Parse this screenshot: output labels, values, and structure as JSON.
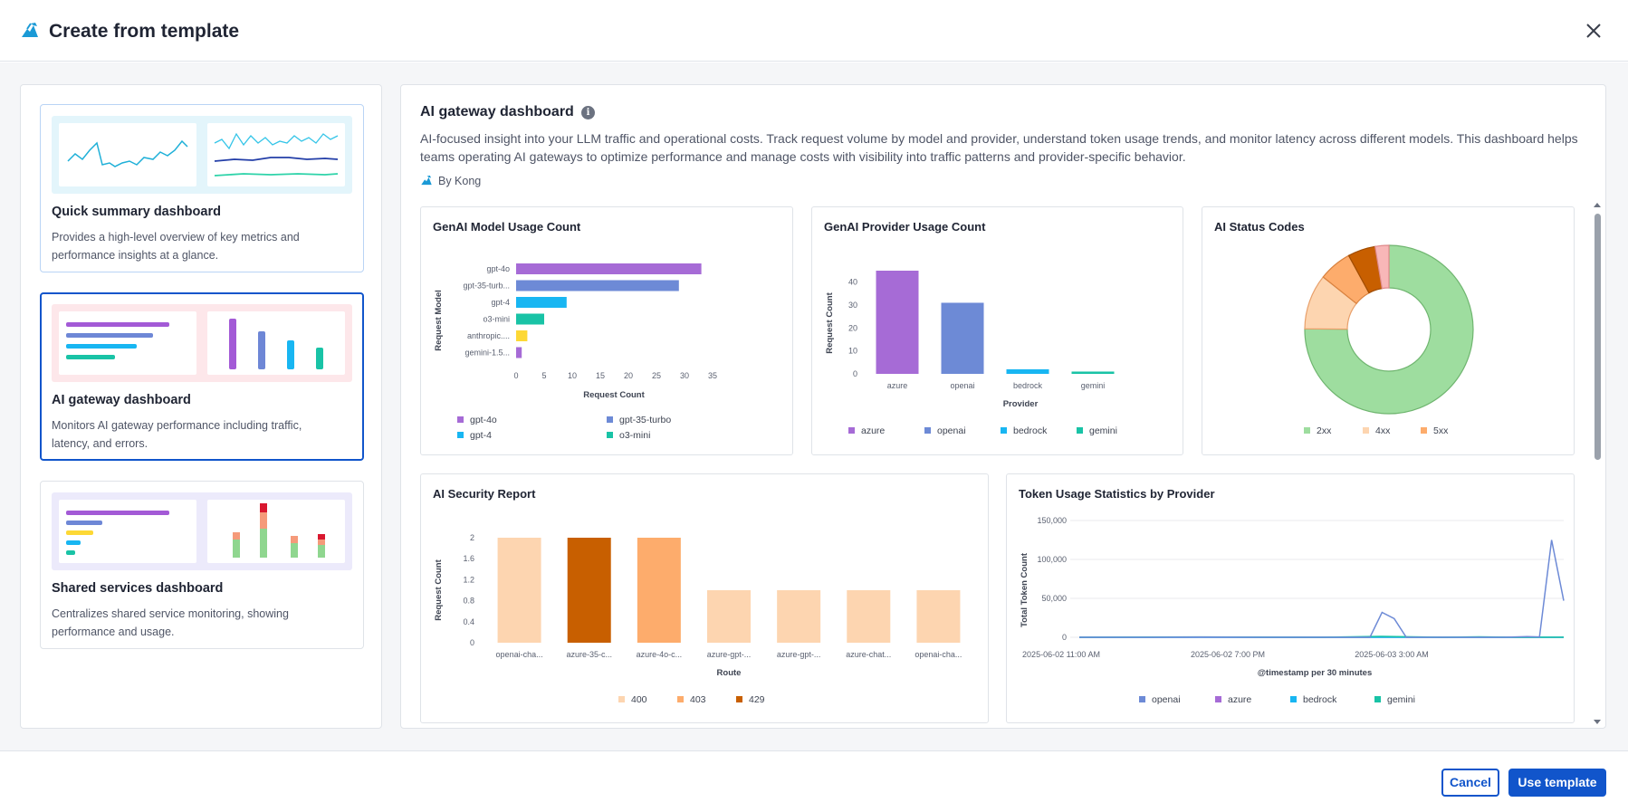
{
  "dialog": {
    "title": "Create from template",
    "close_icon": "close-icon",
    "brand_icon": "kong-logo-icon"
  },
  "colors": {
    "primary": "#1155cb",
    "purple": "#a66bd6",
    "indigo": "#6d8ad6",
    "cyan": "#18b6f2",
    "teal": "#19c3a6",
    "yellow": "#fdd835",
    "green_light": "#9edd9f",
    "peach": "#fdd5b0",
    "orange": "#fdac6c",
    "brown": "#c85f00",
    "pink": "#f8b7b8"
  },
  "templates": [
    {
      "name": "Quick summary dashboard",
      "desc": "Provides a high-level overview of key metrics and performance insights at a glance.",
      "selected": false
    },
    {
      "name": "AI gateway dashboard",
      "desc": "Monitors AI gateway performance including traffic, latency, and errors.",
      "selected": true
    },
    {
      "name": "Shared services dashboard",
      "desc": "Centralizes shared service monitoring, showing performance and usage.",
      "selected": false
    }
  ],
  "detail": {
    "title": "AI gateway dashboard",
    "info_icon": "i",
    "description": "AI-focused insight into your LLM traffic and operational costs. Track request volume by model and provider, understand token usage trends, and monitor latency across different models. This dashboard helps teams operating AI gateways to optimize performance and manage costs with visibility into traffic patterns and provider-specific behavior.",
    "by": "By Kong"
  },
  "chart_data": [
    {
      "id": "model_usage",
      "type": "bar",
      "orientation": "horizontal",
      "title": "GenAI Model Usage Count",
      "xlabel": "Request Count",
      "ylabel": "Request Model",
      "categories": [
        "gpt-4o",
        "gpt-35-turb...",
        "gpt-4",
        "o3-mini",
        "anthropic....",
        "gemini-1.5..."
      ],
      "values": [
        33,
        29,
        9,
        5,
        2,
        1
      ],
      "colors": [
        "#a66bd6",
        "#6d8ad6",
        "#18b6f2",
        "#19c3a6",
        "#fdd835",
        "#a66bd6"
      ],
      "xticks": [
        "0",
        "5",
        "10",
        "15",
        "20",
        "25",
        "30",
        "35"
      ],
      "xlim": [
        0,
        35
      ],
      "legend": [
        {
          "label": "gpt-4o",
          "color": "#a66bd6"
        },
        {
          "label": "gpt-35-turbo",
          "color": "#6d8ad6"
        },
        {
          "label": "gpt-4",
          "color": "#18b6f2"
        },
        {
          "label": "o3-mini",
          "color": "#19c3a6"
        }
      ]
    },
    {
      "id": "provider_usage",
      "type": "bar",
      "title": "GenAI Provider Usage Count",
      "xlabel": "Provider",
      "ylabel": "Request Count",
      "categories": [
        "azure",
        "openai",
        "bedrock",
        "gemini"
      ],
      "values": [
        45,
        31,
        2,
        1
      ],
      "colors": [
        "#a66bd6",
        "#6d8ad6",
        "#18b6f2",
        "#19c3a6"
      ],
      "yticks": [
        "0",
        "10",
        "20",
        "30",
        "40"
      ],
      "ylim": [
        0,
        45
      ],
      "legend": [
        {
          "label": "azure",
          "color": "#a66bd6"
        },
        {
          "label": "openai",
          "color": "#6d8ad6"
        },
        {
          "label": "bedrock",
          "color": "#18b6f2"
        },
        {
          "label": "gemini",
          "color": "#19c3a6"
        }
      ]
    },
    {
      "id": "status_codes",
      "type": "pie",
      "title": "AI Status Codes",
      "donut": true,
      "slices": [
        {
          "label": "2xx",
          "value": 71,
          "color": "#9edd9f",
          "stroke": "#6fb56f"
        },
        {
          "label": "4xx",
          "value": 10,
          "color": "#fdd5b0",
          "stroke": "#e8a06b"
        },
        {
          "label": "4xx",
          "value": 6,
          "color": "#fdac6c",
          "stroke": "#d9823f"
        },
        {
          "label": "4xx",
          "value": 5,
          "color": "#c85f00",
          "stroke": "#a04c00"
        },
        {
          "label": "5xx",
          "value": 2.5,
          "color": "#f8b7b8",
          "stroke": "#e08a8c"
        }
      ],
      "legend": [
        {
          "label": "2xx",
          "color": "#9edd9f"
        },
        {
          "label": "4xx",
          "color": "#fdd5b0"
        },
        {
          "label": "5xx",
          "color": "#fdac6c"
        }
      ]
    },
    {
      "id": "security_report",
      "type": "bar",
      "title": "AI Security Report",
      "xlabel": "Route",
      "ylabel": "Request Count",
      "categories": [
        "openai-cha...",
        "azure-35-c...",
        "azure-4o-c...",
        "azure-gpt-...",
        "azure-gpt-...",
        "azure-chat...",
        "openai-cha..."
      ],
      "values": [
        2,
        2,
        2,
        1,
        1,
        1,
        1
      ],
      "colors": [
        "#fdd5b0",
        "#c85f00",
        "#fdac6c",
        "#fdd5b0",
        "#fdd5b0",
        "#fdd5b0",
        "#fdd5b0"
      ],
      "yticks": [
        "0",
        "0.4",
        "0.8",
        "1.2",
        "1.6",
        "2"
      ],
      "ylim": [
        0,
        2
      ],
      "legend": [
        {
          "label": "400",
          "color": "#fdd5b0"
        },
        {
          "label": "403",
          "color": "#fdac6c"
        },
        {
          "label": "429",
          "color": "#c85f00"
        }
      ]
    },
    {
      "id": "token_usage",
      "type": "line",
      "title": "Token Usage Statistics by Provider",
      "xlabel": "@timestamp per 30 minutes",
      "ylabel": "Total Token Count",
      "yticks": [
        "0",
        "50,000",
        "100,000",
        "150,000"
      ],
      "ylim": [
        0,
        150000
      ],
      "xticks": [
        "2025-06-02 11:00 AM",
        "2025-06-02 7:00 PM",
        "2025-06-03 3:00 AM"
      ],
      "x_index_range": [
        0,
        40
      ],
      "series": [
        {
          "name": "openai",
          "color": "#6d8ad6",
          "points": [
            [
              0,
              0
            ],
            [
              5,
              0
            ],
            [
              10,
              300
            ],
            [
              15,
              0
            ],
            [
              20,
              0
            ],
            [
              24,
              0
            ],
            [
              25,
              32000
            ],
            [
              26,
              24000
            ],
            [
              27,
              0
            ],
            [
              30,
              0
            ],
            [
              35,
              0
            ],
            [
              37,
              800
            ],
            [
              38,
              500
            ],
            [
              39,
              125000
            ],
            [
              40,
              47000
            ]
          ]
        },
        {
          "name": "azure",
          "color": "#a66bd6",
          "points": [
            [
              0,
              0
            ],
            [
              40,
              0
            ]
          ]
        },
        {
          "name": "bedrock",
          "color": "#18b6f2",
          "points": [
            [
              0,
              0
            ],
            [
              40,
              0
            ]
          ]
        },
        {
          "name": "gemini",
          "color": "#19c3a6",
          "points": [
            [
              0,
              0
            ],
            [
              10,
              400
            ],
            [
              20,
              0
            ],
            [
              25,
              1200
            ],
            [
              30,
              0
            ],
            [
              33,
              600
            ],
            [
              36,
              0
            ],
            [
              40,
              200
            ]
          ]
        }
      ],
      "legend": [
        {
          "label": "openai",
          "color": "#6d8ad6"
        },
        {
          "label": "azure",
          "color": "#a66bd6"
        },
        {
          "label": "bedrock",
          "color": "#18b6f2"
        },
        {
          "label": "gemini",
          "color": "#19c3a6"
        }
      ]
    }
  ],
  "footer": {
    "cancel_label": "Cancel",
    "use_label": "Use template"
  }
}
